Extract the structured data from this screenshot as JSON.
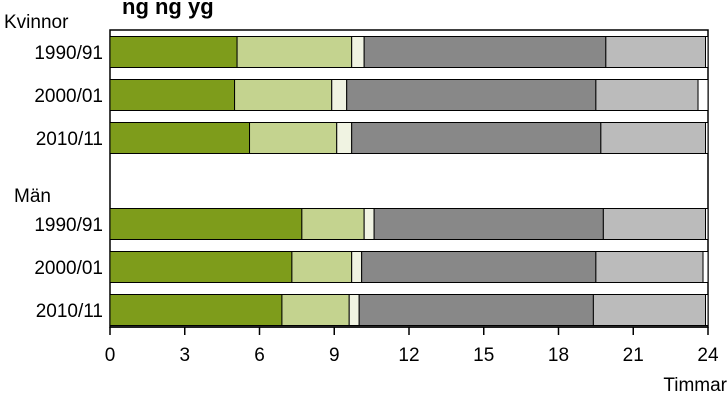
{
  "chart_data": {
    "type": "bar",
    "stacked": true,
    "orientation": "horizontal",
    "title": "Kvinnor och män sömn, måltider och personlig omvårdnad, arbete... (partially visible: \"ng  ng  yg\")",
    "xlabel": "Timmar",
    "xlim": [
      0,
      24
    ],
    "xticks": [
      "0",
      "3",
      "6",
      "9",
      "12",
      "15",
      "18",
      "21",
      "24"
    ],
    "groups": [
      {
        "label": "Kvinnor",
        "categories": [
          "1990/91",
          "2000/01",
          "2010/11"
        ]
      },
      {
        "label": "Män",
        "categories": [
          "1990/91",
          "2000/01",
          "2010/11"
        ]
      }
    ],
    "categories": [
      "1990/91",
      "2000/01",
      "2010/11",
      "1990/91",
      "2000/01",
      "2010/11"
    ],
    "series": [
      {
        "color": "#7e9c1b",
        "values": [
          5.1,
          5.0,
          5.6,
          7.7,
          7.3,
          6.9
        ]
      },
      {
        "color": "#c4d38f",
        "values": [
          4.6,
          3.9,
          3.5,
          2.5,
          2.4,
          2.7
        ]
      },
      {
        "color": "#f0f3e2",
        "values": [
          0.5,
          0.6,
          0.6,
          0.4,
          0.4,
          0.4
        ]
      },
      {
        "color": "#888888",
        "values": [
          9.7,
          10.0,
          10.0,
          9.2,
          9.4,
          9.4
        ]
      },
      {
        "color": "#bbbbbb",
        "values": [
          4.0,
          4.1,
          4.2,
          4.1,
          4.3,
          4.5
        ]
      },
      {
        "color": "#ffffff",
        "values": [
          0.1,
          0.4,
          0.1,
          0.1,
          0.2,
          0.1
        ]
      }
    ],
    "grid": false,
    "legend": "none"
  },
  "title_visible_fragment": "ng   ng  yg"
}
